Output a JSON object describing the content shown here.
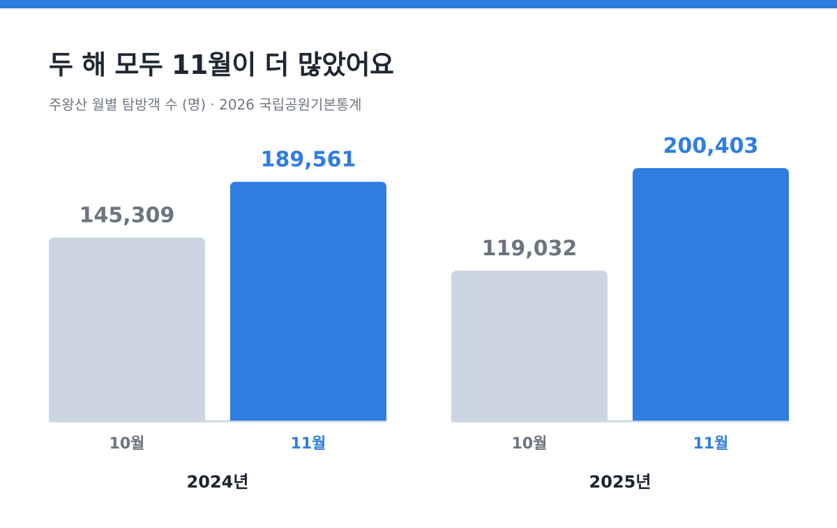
{
  "colors": {
    "accent": "#2f7de1",
    "muted_bar": "#ccd6e3",
    "muted_text": "#6d7480",
    "baseline": "#ccd6e3",
    "group_label": "#1c232e"
  },
  "chart_data": {
    "type": "bar",
    "title": "두 해 모두 11월이 더 많았어요",
    "subtitle": "주왕산 월별 탐방객 수 (명) · 2026 국립공원기본통계",
    "unit": "명",
    "ylim": [
      0,
      200403
    ],
    "grid": false,
    "legend": "none",
    "categories": [
      "10월",
      "11월"
    ],
    "groups": [
      {
        "name": "2024년",
        "values": [
          145309,
          189561
        ],
        "value_labels": [
          "145,309",
          "189,561"
        ]
      },
      {
        "name": "2025년",
        "values": [
          119032,
          200403
        ],
        "value_labels": [
          "119,032",
          "200,403"
        ]
      }
    ],
    "highlight_category": "11월"
  }
}
